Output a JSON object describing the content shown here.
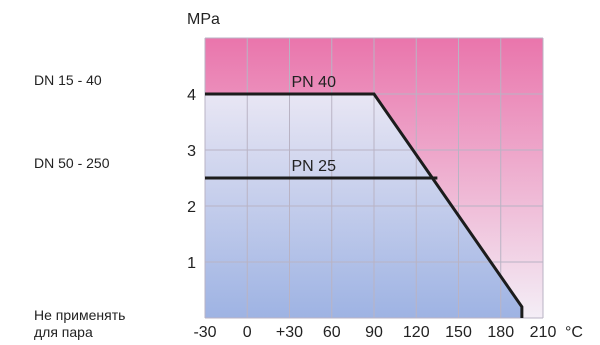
{
  "chart_data": {
    "type": "line",
    "y_unit": "MPa",
    "x_unit": "°C",
    "xlim": [
      -30,
      210
    ],
    "ylim": [
      0,
      5
    ],
    "x_ticks": [
      -30,
      0,
      30,
      60,
      90,
      120,
      150,
      180,
      210
    ],
    "x_tick_labels": [
      "-30",
      "0",
      "+30",
      "60",
      "90",
      "120",
      "150",
      "180",
      "210"
    ],
    "y_ticks": [
      1,
      2,
      3,
      4
    ],
    "y_tick_labels": [
      "1",
      "2",
      "3",
      "4"
    ],
    "grid": true,
    "series": [
      {
        "name": "PN 40",
        "x": [
          -30,
          90,
          195,
          195
        ],
        "y": [
          4,
          4,
          0.2,
          0
        ]
      },
      {
        "name": "PN 25",
        "x": [
          -30,
          135
        ],
        "y": [
          2.5,
          2.5
        ]
      }
    ],
    "side_labels": [
      {
        "text": "DN 15 - 40",
        "y": 4
      },
      {
        "text": "DN 50 - 250",
        "y": 2.5
      }
    ],
    "note": [
      "Не применять",
      "для пара"
    ],
    "colors": {
      "top": "#e86aa5",
      "mid": "#fbf3f8",
      "bottom": "#9eb3e3",
      "grid": "#b9b3c4",
      "line": "#1c1c1c"
    }
  }
}
